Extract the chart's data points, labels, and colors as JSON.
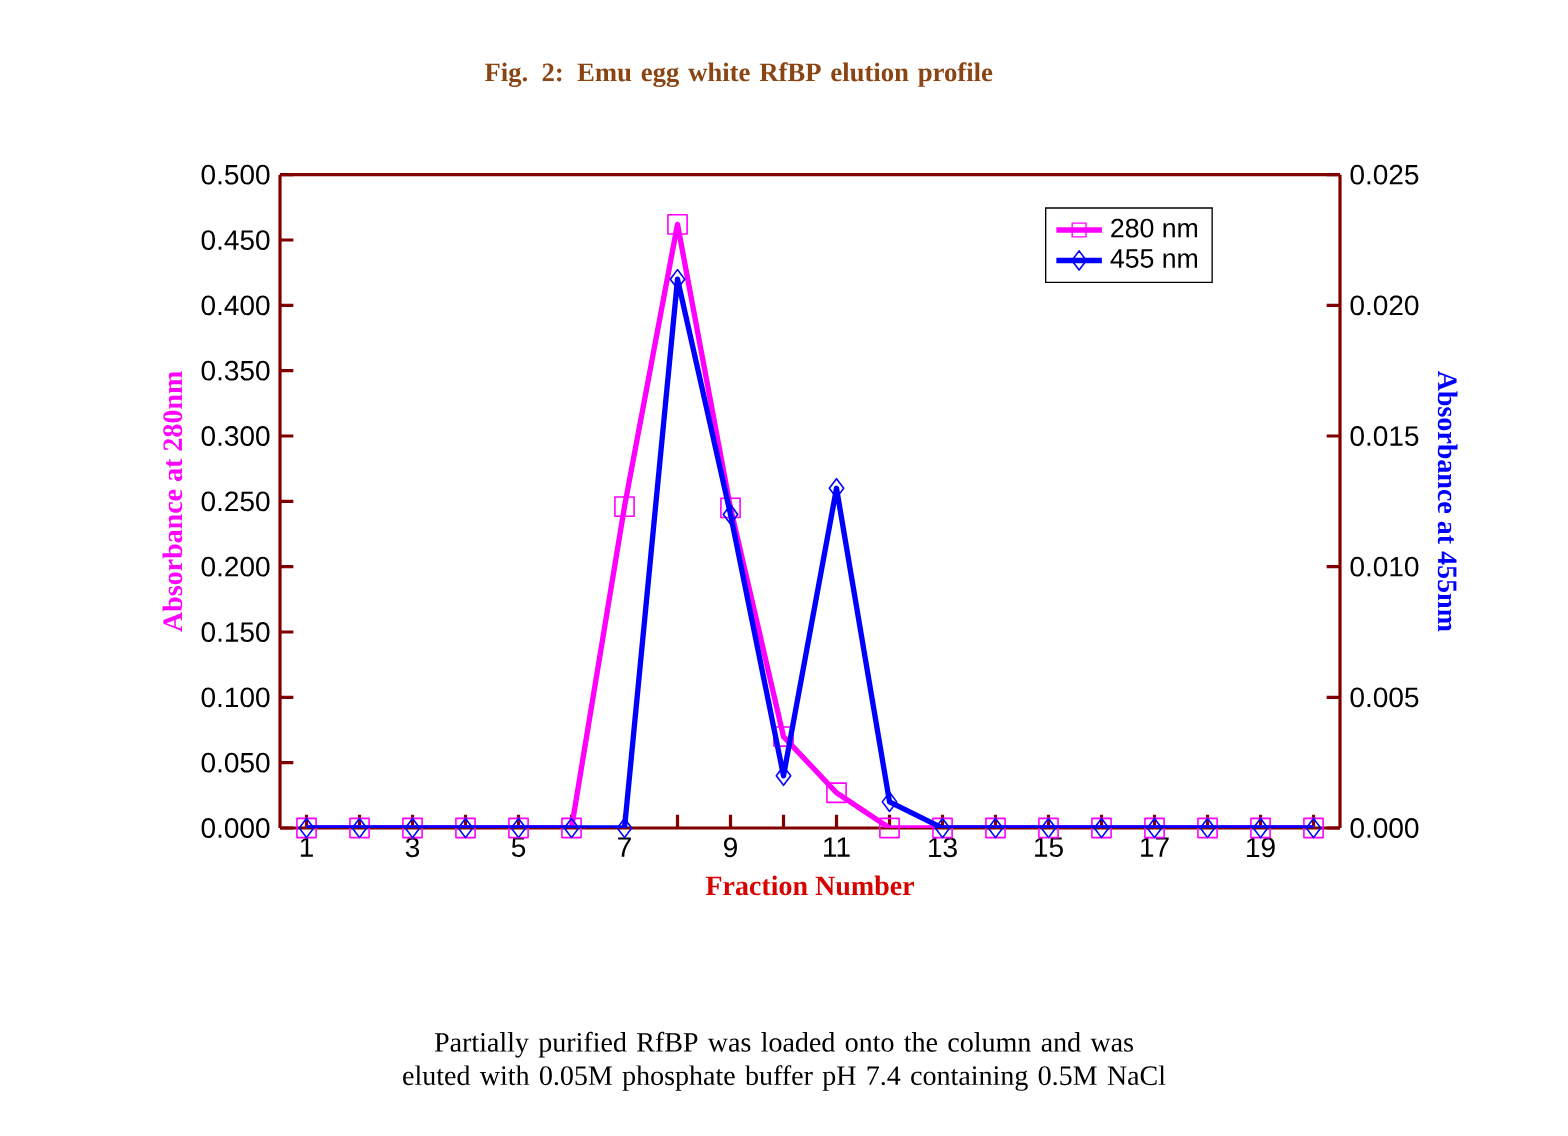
{
  "chart_data": {
    "type": "line",
    "title": "Fig. 2: Emu egg white RfBP elution profile",
    "xlabel": "Fraction Number",
    "ylabel": "Absorbance at 280nm",
    "y2label": "Absorbance at 455nm",
    "x": [
      1,
      2,
      3,
      4,
      5,
      6,
      7,
      8,
      9,
      10,
      11,
      12,
      13,
      14,
      15,
      16,
      17,
      18,
      19,
      20
    ],
    "series": [
      {
        "name": "280 nm",
        "color": "#ff00ff",
        "marker": "square",
        "values": [
          0,
          0,
          0,
          0,
          0,
          0,
          0.246,
          0.462,
          0.245,
          0.07,
          0.027,
          0,
          0,
          0,
          0,
          0,
          0,
          0,
          0,
          0
        ]
      },
      {
        "name": "455 nm",
        "color": "#0000ff",
        "marker": "diamond",
        "axis": "y2",
        "values": [
          0,
          0,
          0,
          0,
          0,
          0,
          0,
          0.021,
          0.012,
          0.002,
          0.013,
          0.001,
          0,
          0,
          0,
          0,
          0,
          0,
          0,
          0
        ]
      }
    ],
    "xlim": [
      0.5,
      20.5
    ],
    "xticks": [
      1,
      {
        "value": 2,
        "label": null
      },
      3,
      {
        "value": 4,
        "label": null
      },
      5,
      {
        "value": 6,
        "label": null
      },
      7,
      {
        "value": 8,
        "label": null
      },
      9,
      {
        "value": 10,
        "label": null
      },
      11,
      {
        "value": 12,
        "label": null
      },
      13,
      {
        "value": 14,
        "label": null
      },
      15,
      {
        "value": 16,
        "label": null
      },
      17,
      {
        "value": 18,
        "label": null
      },
      19,
      {
        "value": 20,
        "label": null
      }
    ],
    "ylim": [
      0,
      0.5
    ],
    "yticks": [
      {
        "value": 0,
        "label": "0.000"
      },
      {
        "value": 0.05,
        "label": "0.050"
      },
      {
        "value": 0.1,
        "label": "0.100"
      },
      {
        "value": 0.15,
        "label": "0.150"
      },
      {
        "value": 0.2,
        "label": "0.200"
      },
      {
        "value": 0.25,
        "label": "0.250"
      },
      {
        "value": 0.3,
        "label": "0.300"
      },
      {
        "value": 0.35,
        "label": "0.350"
      },
      {
        "value": 0.4,
        "label": "0.400"
      },
      {
        "value": 0.45,
        "label": "0.450"
      },
      {
        "value": 0.5,
        "label": "0.500"
      }
    ],
    "y2lim": [
      0,
      0.025
    ],
    "y2ticks": [
      {
        "value": 0,
        "label": "0.000"
      },
      {
        "value": 0.005,
        "label": "0.005"
      },
      {
        "value": 0.01,
        "label": "0.010"
      },
      {
        "value": 0.015,
        "label": "0.015"
      },
      {
        "value": 0.02,
        "label": "0.020"
      },
      {
        "value": 0.025,
        "label": "0.025"
      }
    ],
    "legend": "top right",
    "grid": false,
    "line_style": "solid",
    "annotations": [
      "Partially purified RfBP was loaded onto the column and was eluted with 0.05M phosphate buffer pH 7.4 containing 0.5M NaCl"
    ]
  }
}
